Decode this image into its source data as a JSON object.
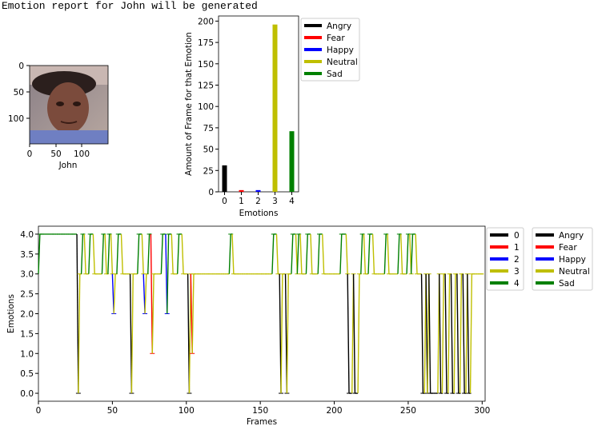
{
  "header": {
    "text": "Emotion report for John will be generated"
  },
  "face_image": {
    "xlabel": "John",
    "xticks": [
      "0",
      "50",
      "100"
    ],
    "yticks": [
      "0",
      "50",
      "100"
    ]
  },
  "colors": {
    "Angry": "#000000",
    "Fear": "#ff0000",
    "Happy": "#0000ff",
    "Neutral": "#bfbf00",
    "Sad": "#008000"
  },
  "chart_data": [
    {
      "type": "bar",
      "categories": [
        "0",
        "1",
        "2",
        "3",
        "4"
      ],
      "values": [
        31,
        2,
        2,
        196,
        71
      ],
      "colors": [
        "#000000",
        "#ff0000",
        "#0000ff",
        "#bfbf00",
        "#008000"
      ],
      "xlabel": "Emotions",
      "ylabel": "Amount of Frame for that Emotion",
      "ylim": [
        0,
        206
      ],
      "yticks": [
        0,
        25,
        50,
        75,
        100,
        125,
        150,
        175,
        200
      ],
      "legend": [
        "Angry",
        "Fear",
        "Happy",
        "Neutral",
        "Sad"
      ],
      "legend_placement": "outside right"
    },
    {
      "type": "line",
      "xlabel": "Frames",
      "ylabel": "Emotions",
      "xlim": [
        0,
        302
      ],
      "ylim": [
        -0.2,
        4.2
      ],
      "xticks": [
        0,
        50,
        100,
        150,
        200,
        250,
        300
      ],
      "yticks": [
        "0.0",
        "0.5",
        "1.0",
        "1.5",
        "2.0",
        "2.5",
        "3.0",
        "3.5",
        "4.0"
      ],
      "legend_numeric": [
        "0",
        "1",
        "2",
        "3",
        "4"
      ],
      "legend_named": [
        "Angry",
        "Fear",
        "Happy",
        "Neutral",
        "Sad"
      ],
      "legend_placement": "outside right",
      "sequence_runs": [
        [
          0,
          3
        ],
        [
          1,
          4
        ],
        [
          4,
          4
        ],
        [
          18,
          4
        ],
        [
          26,
          4
        ],
        [
          27,
          0
        ],
        [
          28,
          3
        ],
        [
          30,
          4
        ],
        [
          32,
          3
        ],
        [
          35,
          4
        ],
        [
          38,
          3
        ],
        [
          44,
          4
        ],
        [
          46,
          3
        ],
        [
          48,
          4
        ],
        [
          50,
          3
        ],
        [
          51,
          2
        ],
        [
          52,
          3
        ],
        [
          54,
          4
        ],
        [
          57,
          3
        ],
        [
          63,
          0
        ],
        [
          64,
          3
        ],
        [
          68,
          4
        ],
        [
          71,
          3
        ],
        [
          72,
          2
        ],
        [
          73,
          3
        ],
        [
          75,
          4
        ],
        [
          77,
          1
        ],
        [
          78,
          3
        ],
        [
          84,
          4
        ],
        [
          87,
          2
        ],
        [
          88,
          4
        ],
        [
          91,
          3
        ],
        [
          95,
          4
        ],
        [
          98,
          3
        ],
        [
          102,
          0
        ],
        [
          103,
          3
        ],
        [
          104,
          1
        ],
        [
          105,
          3
        ],
        [
          130,
          4
        ],
        [
          132,
          3
        ],
        [
          150,
          3
        ],
        [
          159,
          4
        ],
        [
          162,
          3
        ],
        [
          164,
          0
        ],
        [
          165,
          3
        ],
        [
          168,
          0
        ],
        [
          169,
          3
        ],
        [
          172,
          4
        ],
        [
          175,
          3
        ],
        [
          176,
          4
        ],
        [
          178,
          3
        ],
        [
          182,
          4
        ],
        [
          185,
          3
        ],
        [
          190,
          4
        ],
        [
          193,
          3
        ],
        [
          197,
          3
        ],
        [
          205,
          4
        ],
        [
          209,
          3
        ],
        [
          210,
          0
        ],
        [
          213,
          3
        ],
        [
          214,
          0
        ],
        [
          217,
          3
        ],
        [
          219,
          4
        ],
        [
          221,
          3
        ],
        [
          224,
          4
        ],
        [
          227,
          3
        ],
        [
          235,
          4
        ],
        [
          237,
          3
        ],
        [
          244,
          4
        ],
        [
          246,
          3
        ],
        [
          250,
          4
        ],
        [
          252,
          3
        ],
        [
          253,
          4
        ],
        [
          256,
          3
        ],
        [
          260,
          0
        ],
        [
          262,
          3
        ],
        [
          263,
          0
        ],
        [
          264,
          3
        ],
        [
          265,
          0
        ],
        [
          271,
          3
        ],
        [
          272,
          0
        ],
        [
          274,
          3
        ],
        [
          276,
          0
        ],
        [
          278,
          3
        ],
        [
          280,
          0
        ],
        [
          282,
          3
        ],
        [
          284,
          0
        ],
        [
          286,
          3
        ],
        [
          288,
          0
        ],
        [
          290,
          3
        ],
        [
          291,
          0
        ],
        [
          293,
          3
        ],
        [
          301,
          3
        ]
      ]
    }
  ]
}
